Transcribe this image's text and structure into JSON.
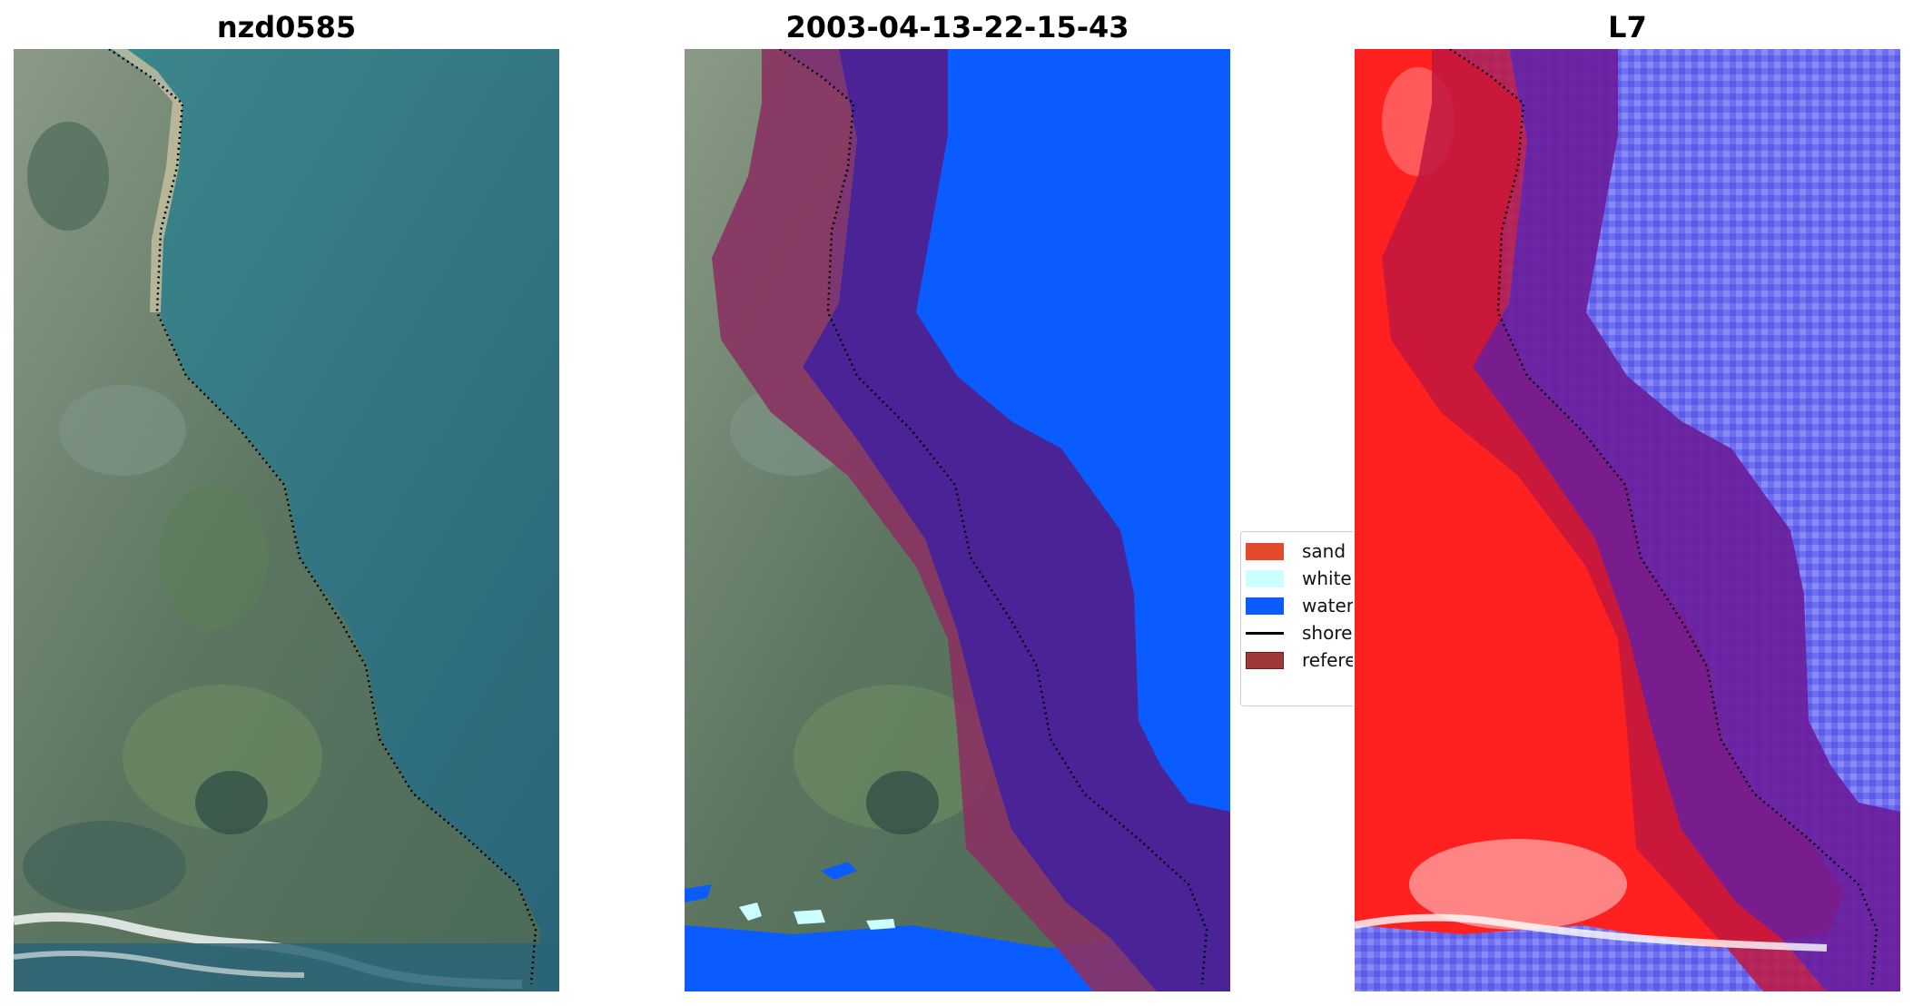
{
  "panels": [
    {
      "title": "nzd0585"
    },
    {
      "title": "2003-04-13-22-15-43"
    },
    {
      "title": "L7"
    }
  ],
  "legend": {
    "items": [
      {
        "label": "sand",
        "color": "#e34a2c",
        "kind": "patch"
      },
      {
        "label": "whitewater",
        "color": "#ccffff",
        "kind": "patch"
      },
      {
        "label": "water",
        "color": "#0a5cff",
        "kind": "patch"
      },
      {
        "label": "shoreline",
        "color": "#000000",
        "kind": "line"
      },
      {
        "label": "reference shoreline buffer",
        "color": "#a0383a",
        "kind": "patch"
      }
    ]
  },
  "colors": {
    "water_rgb": "#2e6f80",
    "land_rgb": "#5d7a62",
    "class_water": "#0a5cff",
    "class_buffer_land": "#8a3262",
    "class_buffer_water": "#4a2496",
    "index_land": "#ff2020",
    "index_water": "#6e6ef0",
    "index_buffer_land": "#c01840",
    "index_buffer_water": "#6a1c9a"
  }
}
